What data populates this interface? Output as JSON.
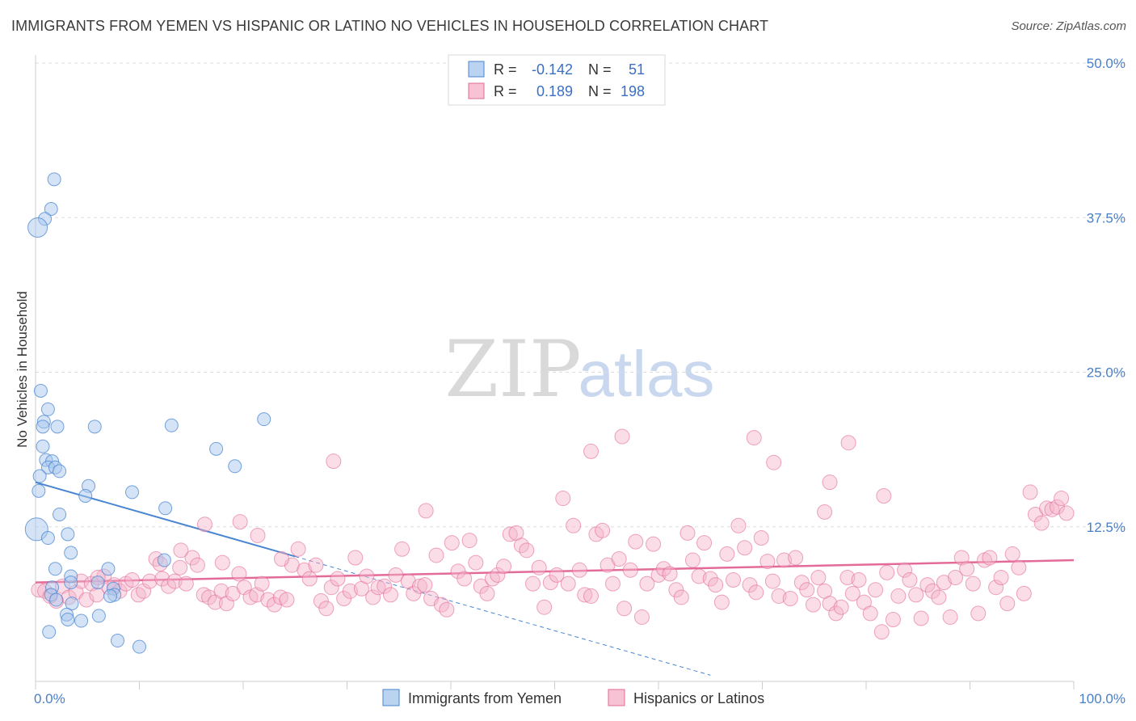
{
  "title": "IMMIGRANTS FROM YEMEN VS HISPANIC OR LATINO NO VEHICLES IN HOUSEHOLD CORRELATION CHART",
  "source": "Source: ZipAtlas.com",
  "watermark": {
    "zip": "ZIP",
    "atlas": "atlas"
  },
  "colors": {
    "blue": "#4a86d0",
    "blue_fill": "#a9c8ee",
    "pink": "#e36b98",
    "pink_fill": "#f4b3c9",
    "value_text": "#3b6fc4"
  },
  "legend_box": {
    "rows": [
      {
        "r_label": "R =",
        "r_value": "-0.142",
        "n_label": "N =",
        "n_value": "51"
      },
      {
        "r_label": "R =",
        "r_value": "0.189",
        "n_label": "N =",
        "n_value": "198"
      }
    ]
  },
  "chart_data": {
    "type": "scatter",
    "xlabel": "",
    "ylabel": "No Vehicles in Household",
    "xlim": [
      0,
      100
    ],
    "ylim": [
      0,
      50
    ],
    "x_tick_labels": [
      "0.0%",
      "100.0%"
    ],
    "y_ticks": [
      12.5,
      25.0,
      37.5,
      50.0
    ],
    "y_tick_labels": [
      "12.5%",
      "25.0%",
      "37.5%",
      "50.0%"
    ],
    "grid": true,
    "legend_placement": "bottom",
    "series": [
      {
        "name": "Immigrants from Yemen",
        "r": -0.142,
        "n": 51,
        "trend": {
          "x0": 0,
          "y0": 16.1,
          "x1": 25,
          "y1": 10.1,
          "dashed_to_x": 65
        },
        "points": [
          [
            1.8,
            40.6
          ],
          [
            1.5,
            38.2
          ],
          [
            0.9,
            37.4
          ],
          [
            0.2,
            36.7
          ],
          [
            0.5,
            23.5
          ],
          [
            1.2,
            22.0
          ],
          [
            0.8,
            21.0
          ],
          [
            0.7,
            20.6
          ],
          [
            2.1,
            20.6
          ],
          [
            5.7,
            20.6
          ],
          [
            13.1,
            20.7
          ],
          [
            22.0,
            21.2
          ],
          [
            0.7,
            19.0
          ],
          [
            17.4,
            18.8
          ],
          [
            1.0,
            17.9
          ],
          [
            1.6,
            17.8
          ],
          [
            1.2,
            17.3
          ],
          [
            1.9,
            17.3
          ],
          [
            2.3,
            17.0
          ],
          [
            19.2,
            17.4
          ],
          [
            0.4,
            16.6
          ],
          [
            0.3,
            15.4
          ],
          [
            5.1,
            15.8
          ],
          [
            4.8,
            15.0
          ],
          [
            9.3,
            15.3
          ],
          [
            12.5,
            14.0
          ],
          [
            2.3,
            13.5
          ],
          [
            0.1,
            12.3
          ],
          [
            1.2,
            11.6
          ],
          [
            3.1,
            11.9
          ],
          [
            3.4,
            10.4
          ],
          [
            12.4,
            9.8
          ],
          [
            1.9,
            9.1
          ],
          [
            7.0,
            9.1
          ],
          [
            3.4,
            8.5
          ],
          [
            3.4,
            8.0
          ],
          [
            6.0,
            8.0
          ],
          [
            1.6,
            7.6
          ],
          [
            7.5,
            7.5
          ],
          [
            1.5,
            7.0
          ],
          [
            7.6,
            7.0
          ],
          [
            2.0,
            6.6
          ],
          [
            3.5,
            6.3
          ],
          [
            3.0,
            5.4
          ],
          [
            6.1,
            5.3
          ],
          [
            3.1,
            5.0
          ],
          [
            4.4,
            4.9
          ],
          [
            1.3,
            4.0
          ],
          [
            7.9,
            3.3
          ],
          [
            10.0,
            2.8
          ],
          [
            7.2,
            6.9
          ]
        ]
      },
      {
        "name": "Hispanics or Latinos",
        "r": 0.189,
        "n": 198,
        "trend": {
          "x0": 0,
          "y0": 8.0,
          "x1": 100,
          "y1": 9.8
        },
        "points": [
          [
            0.3,
            7.4
          ],
          [
            0.9,
            7.3
          ],
          [
            1.4,
            6.9
          ],
          [
            2.0,
            6.5
          ],
          [
            2.6,
            7.7
          ],
          [
            3.2,
            6.8
          ],
          [
            3.9,
            7.2
          ],
          [
            4.4,
            8.1
          ],
          [
            4.9,
            6.6
          ],
          [
            5.4,
            7.9
          ],
          [
            5.9,
            7.0
          ],
          [
            6.6,
            8.5
          ],
          [
            7.1,
            7.6
          ],
          [
            7.6,
            7.8
          ],
          [
            8.1,
            7.3
          ],
          [
            8.7,
            7.9
          ],
          [
            9.3,
            8.2
          ],
          [
            9.9,
            7.0
          ],
          [
            10.4,
            7.3
          ],
          [
            11.0,
            8.1
          ],
          [
            11.6,
            9.9
          ],
          [
            12.2,
            8.3
          ],
          [
            12.8,
            7.7
          ],
          [
            13.4,
            8.1
          ],
          [
            13.9,
            9.2
          ],
          [
            14.5,
            7.9
          ],
          [
            15.1,
            10.0
          ],
          [
            15.6,
            9.4
          ],
          [
            16.2,
            7.0
          ],
          [
            16.7,
            6.8
          ],
          [
            17.3,
            6.4
          ],
          [
            17.9,
            7.3
          ],
          [
            18.4,
            6.3
          ],
          [
            19.0,
            7.1
          ],
          [
            19.6,
            8.7
          ],
          [
            20.1,
            7.6
          ],
          [
            20.7,
            6.8
          ],
          [
            21.3,
            7.0
          ],
          [
            21.8,
            7.9
          ],
          [
            22.4,
            6.6
          ],
          [
            23.0,
            6.2
          ],
          [
            23.6,
            6.8
          ],
          [
            24.2,
            6.6
          ],
          [
            24.7,
            9.4
          ],
          [
            25.3,
            10.7
          ],
          [
            25.9,
            9.0
          ],
          [
            26.4,
            8.3
          ],
          [
            27.0,
            9.4
          ],
          [
            27.5,
            6.5
          ],
          [
            28.0,
            5.9
          ],
          [
            28.5,
            7.6
          ],
          [
            29.1,
            8.3
          ],
          [
            29.7,
            6.7
          ],
          [
            30.3,
            7.3
          ],
          [
            30.8,
            10.0
          ],
          [
            31.4,
            7.5
          ],
          [
            31.9,
            8.5
          ],
          [
            32.5,
            6.8
          ],
          [
            33.0,
            7.6
          ],
          [
            33.6,
            7.7
          ],
          [
            34.2,
            7.0
          ],
          [
            34.7,
            8.6
          ],
          [
            35.3,
            10.7
          ],
          [
            35.9,
            8.1
          ],
          [
            36.4,
            7.1
          ],
          [
            37.0,
            7.7
          ],
          [
            37.5,
            7.8
          ],
          [
            38.1,
            6.7
          ],
          [
            38.6,
            10.2
          ],
          [
            39.1,
            6.2
          ],
          [
            39.6,
            5.8
          ],
          [
            40.1,
            11.2
          ],
          [
            40.7,
            8.9
          ],
          [
            41.3,
            8.3
          ],
          [
            41.8,
            11.4
          ],
          [
            42.4,
            9.6
          ],
          [
            42.9,
            7.7
          ],
          [
            43.5,
            7.1
          ],
          [
            44.0,
            8.3
          ],
          [
            44.5,
            8.6
          ],
          [
            45.1,
            9.3
          ],
          [
            45.7,
            11.9
          ],
          [
            46.3,
            12.0
          ],
          [
            46.8,
            11.0
          ],
          [
            47.3,
            10.6
          ],
          [
            47.9,
            7.9
          ],
          [
            48.5,
            9.2
          ],
          [
            49.0,
            6.0
          ],
          [
            49.6,
            8.0
          ],
          [
            50.2,
            8.6
          ],
          [
            50.8,
            14.8
          ],
          [
            51.3,
            7.9
          ],
          [
            51.8,
            12.6
          ],
          [
            52.4,
            9.0
          ],
          [
            52.9,
            7.0
          ],
          [
            53.5,
            6.9
          ],
          [
            54.0,
            11.9
          ],
          [
            54.6,
            12.2
          ],
          [
            55.1,
            9.4
          ],
          [
            55.6,
            7.9
          ],
          [
            56.2,
            9.9
          ],
          [
            56.7,
            5.9
          ],
          [
            57.3,
            9.0
          ],
          [
            57.8,
            11.3
          ],
          [
            58.4,
            5.2
          ],
          [
            58.9,
            7.9
          ],
          [
            59.5,
            11.1
          ],
          [
            60.0,
            8.6
          ],
          [
            60.5,
            9.1
          ],
          [
            61.1,
            8.7
          ],
          [
            61.7,
            7.4
          ],
          [
            62.2,
            6.8
          ],
          [
            62.8,
            12.0
          ],
          [
            63.3,
            9.8
          ],
          [
            63.9,
            8.5
          ],
          [
            64.4,
            11.2
          ],
          [
            65.0,
            8.3
          ],
          [
            65.5,
            7.8
          ],
          [
            66.1,
            6.4
          ],
          [
            66.6,
            10.3
          ],
          [
            67.2,
            8.2
          ],
          [
            67.7,
            12.6
          ],
          [
            68.3,
            10.8
          ],
          [
            68.8,
            7.8
          ],
          [
            69.4,
            7.2
          ],
          [
            69.9,
            11.6
          ],
          [
            70.5,
            9.7
          ],
          [
            71.0,
            8.1
          ],
          [
            71.6,
            6.9
          ],
          [
            72.1,
            9.8
          ],
          [
            72.7,
            6.7
          ],
          [
            73.2,
            10.0
          ],
          [
            73.8,
            8.0
          ],
          [
            74.3,
            7.4
          ],
          [
            74.9,
            6.2
          ],
          [
            75.4,
            8.4
          ],
          [
            76.0,
            7.3
          ],
          [
            76.5,
            6.3
          ],
          [
            77.1,
            5.5
          ],
          [
            77.6,
            6.0
          ],
          [
            78.2,
            8.4
          ],
          [
            78.7,
            7.1
          ],
          [
            79.3,
            8.2
          ],
          [
            79.8,
            6.4
          ],
          [
            80.4,
            5.5
          ],
          [
            80.9,
            7.4
          ],
          [
            81.5,
            4.0
          ],
          [
            82.0,
            8.8
          ],
          [
            82.6,
            5.0
          ],
          [
            83.1,
            6.9
          ],
          [
            83.7,
            9.0
          ],
          [
            84.2,
            8.2
          ],
          [
            84.8,
            7.0
          ],
          [
            85.3,
            5.1
          ],
          [
            85.9,
            7.8
          ],
          [
            86.4,
            7.3
          ],
          [
            87.0,
            6.8
          ],
          [
            87.5,
            8.0
          ],
          [
            88.1,
            5.2
          ],
          [
            88.6,
            8.4
          ],
          [
            89.2,
            10.0
          ],
          [
            89.7,
            9.1
          ],
          [
            90.3,
            7.9
          ],
          [
            90.8,
            5.5
          ],
          [
            91.4,
            9.8
          ],
          [
            91.9,
            10.0
          ],
          [
            92.5,
            7.6
          ],
          [
            93.0,
            8.4
          ],
          [
            93.6,
            6.3
          ],
          [
            94.1,
            10.3
          ],
          [
            94.7,
            9.2
          ],
          [
            95.2,
            7.1
          ],
          [
            95.8,
            15.3
          ],
          [
            96.3,
            13.5
          ],
          [
            96.9,
            12.8
          ],
          [
            97.4,
            14.0
          ],
          [
            97.9,
            13.9
          ],
          [
            98.4,
            14.1
          ],
          [
            98.8,
            14.8
          ],
          [
            99.3,
            13.6
          ],
          [
            53.5,
            18.6
          ],
          [
            56.5,
            19.8
          ],
          [
            69.2,
            19.7
          ],
          [
            71.1,
            17.7
          ],
          [
            76.5,
            16.1
          ],
          [
            78.3,
            19.3
          ],
          [
            81.7,
            15.0
          ],
          [
            28.7,
            17.8
          ],
          [
            37.6,
            13.8
          ],
          [
            76.0,
            13.7
          ],
          [
            16.3,
            12.7
          ],
          [
            19.7,
            12.9
          ],
          [
            21.4,
            11.8
          ],
          [
            14.0,
            10.6
          ],
          [
            18.0,
            9.6
          ],
          [
            23.7,
            9.9
          ],
          [
            12.0,
            9.5
          ],
          [
            6.0,
            8.4
          ]
        ]
      }
    ]
  }
}
